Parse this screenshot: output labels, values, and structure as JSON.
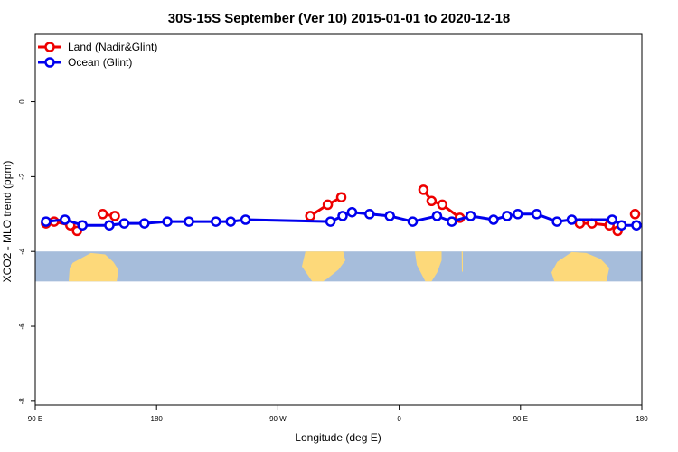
{
  "chart_data": {
    "type": "line",
    "title": "30S-15S September (Ver 10)   2015-01-01 to 2020-12-18",
    "xlabel": "Longitude (deg E)",
    "ylabel": "XCO2 - MLO trend (ppm)",
    "xlim": [
      90,
      540
    ],
    "ylim": [
      -8.1,
      1.8
    ],
    "x_ticks": [
      {
        "value": 90,
        "label": "90 E"
      },
      {
        "value": 180,
        "label": "180"
      },
      {
        "value": 270,
        "label": "90 W"
      },
      {
        "value": 360,
        "label": "0"
      },
      {
        "value": 450,
        "label": "90 E"
      },
      {
        "value": 540,
        "label": "180"
      }
    ],
    "y_ticks": [
      {
        "value": 0,
        "label": "0"
      },
      {
        "value": -2,
        "label": "-2"
      },
      {
        "value": -4,
        "label": "-4"
      },
      {
        "value": -6,
        "label": "-6"
      },
      {
        "value": -8,
        "label": "-8"
      }
    ],
    "legend_position": "top-left",
    "map_band": {
      "y_range": [
        -4.8,
        -4.0
      ],
      "ocean_color": "#a6bddb",
      "land_color": "#fdd97a"
    },
    "series": [
      {
        "name": "Land (Nadir&Glint)",
        "color": "#ee0000",
        "segments": [
          [
            [
              98,
              -3.25
            ],
            [
              104,
              -3.2
            ],
            [
              116,
              -3.3
            ],
            [
              121,
              -3.45
            ]
          ],
          [
            [
              140,
              -3.0
            ],
            [
              149,
              -3.05
            ]
          ],
          [
            [
              294,
              -3.05
            ],
            [
              307,
              -2.75
            ],
            [
              317,
              -2.55
            ]
          ],
          [
            [
              378,
              -2.35
            ],
            [
              384,
              -2.65
            ],
            [
              392,
              -2.75
            ],
            [
              405,
              -3.1
            ]
          ],
          [
            [
              494,
              -3.25
            ],
            [
              503,
              -3.25
            ],
            [
              516,
              -3.3
            ],
            [
              522,
              -3.45
            ]
          ],
          [
            [
              535,
              -3.0
            ]
          ]
        ]
      },
      {
        "name": "Ocean (Glint)",
        "color": "#0000ee",
        "segments": [
          [
            [
              98,
              -3.2
            ],
            [
              112,
              -3.15
            ],
            [
              125,
              -3.3
            ],
            [
              145,
              -3.3
            ],
            [
              156,
              -3.25
            ],
            [
              171,
              -3.25
            ],
            [
              188,
              -3.2
            ],
            [
              204,
              -3.2
            ],
            [
              224,
              -3.2
            ],
            [
              235,
              -3.2
            ],
            [
              246,
              -3.15
            ],
            [
              309,
              -3.2
            ],
            [
              318,
              -3.05
            ],
            [
              325,
              -2.95
            ],
            [
              338,
              -3.0
            ],
            [
              353,
              -3.05
            ],
            [
              370,
              -3.2
            ],
            [
              388,
              -3.05
            ],
            [
              399,
              -3.2
            ],
            [
              413,
              -3.05
            ],
            [
              430,
              -3.15
            ],
            [
              440,
              -3.05
            ],
            [
              448,
              -3.0
            ],
            [
              462,
              -3.0
            ],
            [
              477,
              -3.2
            ],
            [
              488,
              -3.15
            ],
            [
              518,
              -3.15
            ],
            [
              525,
              -3.3
            ],
            [
              536,
              -3.3
            ]
          ]
        ]
      }
    ]
  }
}
